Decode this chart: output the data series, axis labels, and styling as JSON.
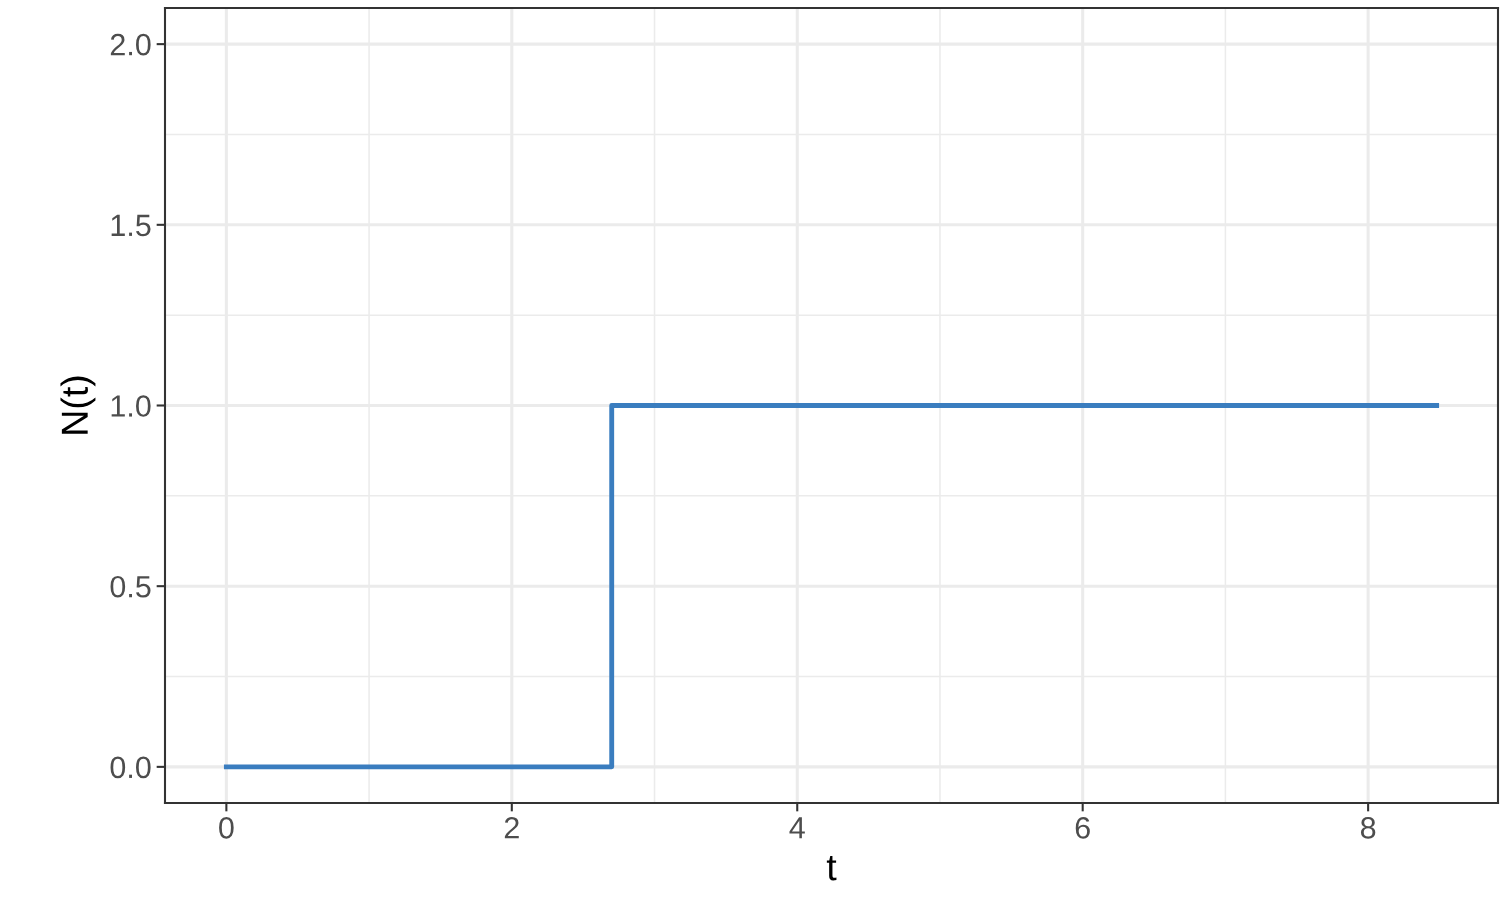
{
  "chart_data": {
    "type": "step",
    "xlabel": "t",
    "ylabel": "N(t)",
    "x": [
      0,
      2.7,
      8.48
    ],
    "series": [
      {
        "color": "#3a7dbf",
        "values": [
          0,
          1,
          1
        ]
      }
    ],
    "xlim": [
      -0.43,
      8.91
    ],
    "ylim": [
      -0.1,
      2.1
    ],
    "xticks": [
      0,
      2,
      4,
      6,
      8
    ],
    "yticks": [
      {
        "value": 0,
        "label": "0.0"
      },
      {
        "value": 0.5,
        "label": "0.5"
      },
      {
        "value": 1,
        "label": "1.0"
      },
      {
        "value": 1.5,
        "label": "1.5"
      },
      {
        "value": 2,
        "label": "2.0"
      }
    ],
    "grid": true,
    "line_style": "solid",
    "marker": "none"
  }
}
